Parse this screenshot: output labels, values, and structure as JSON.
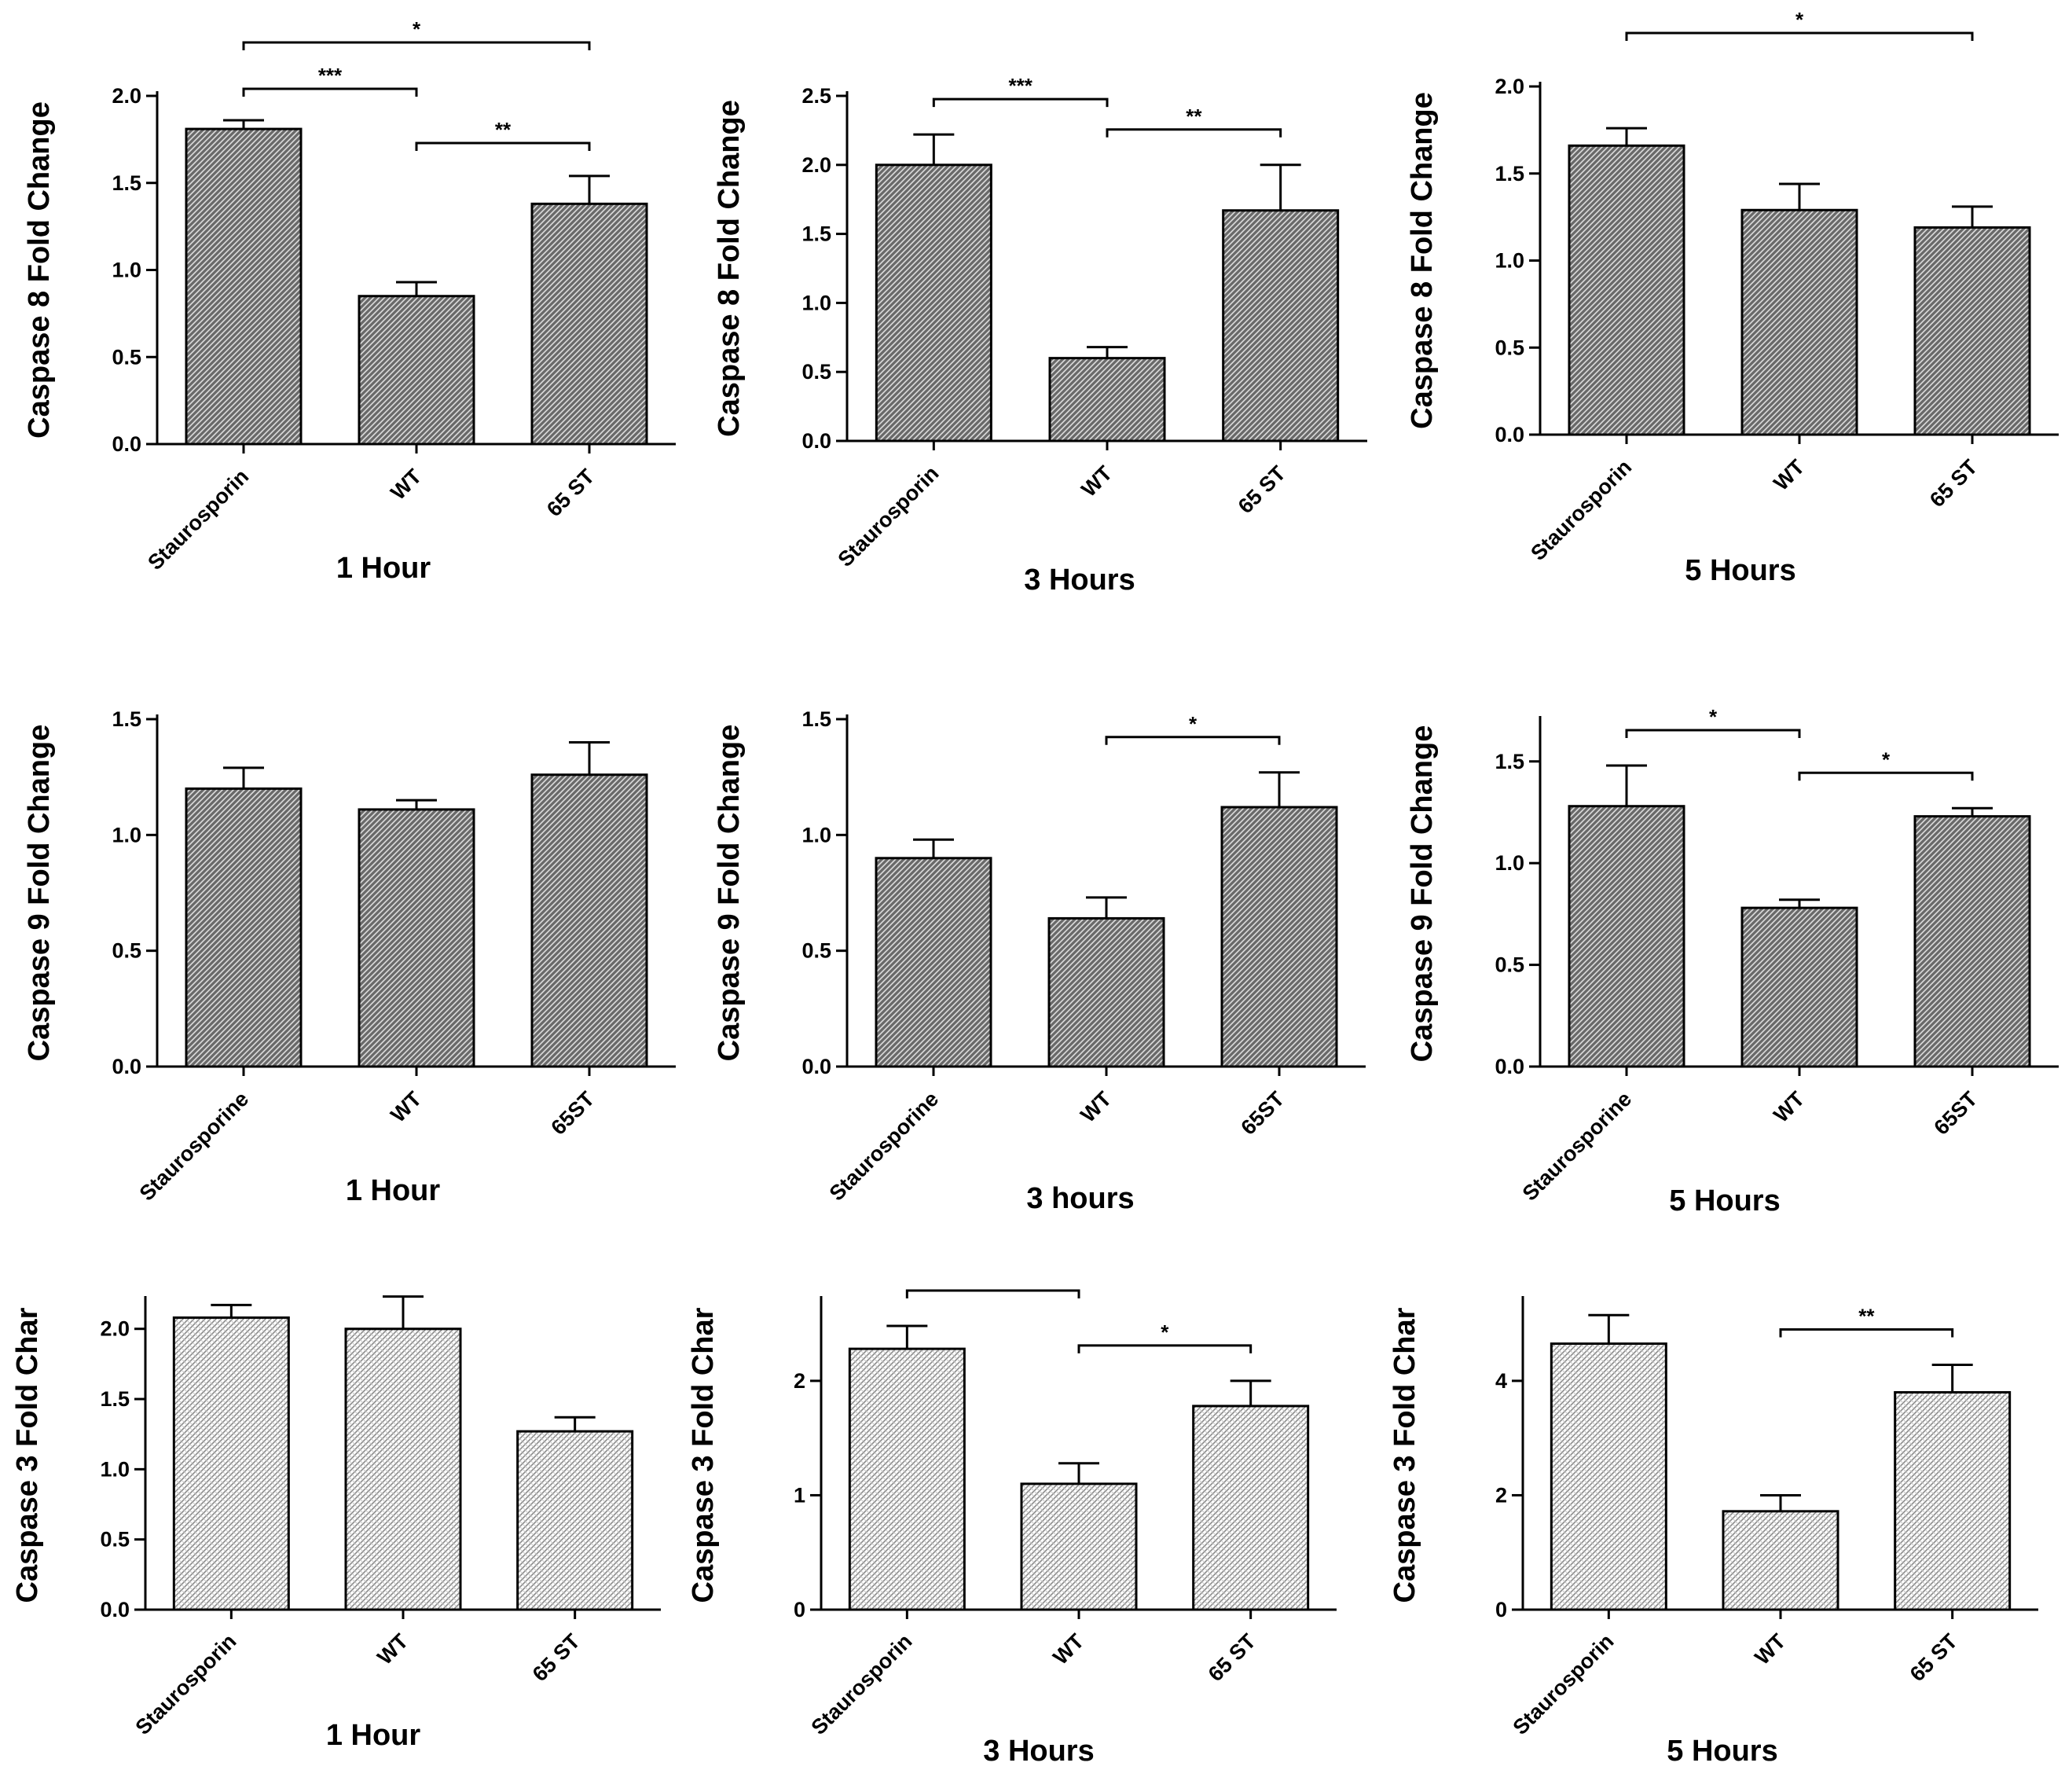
{
  "chart_data": [
    {
      "type": "bar",
      "title": "1 Hour",
      "ylabel": "Caspase 8 Fold Change",
      "xlabel": "",
      "categories": [
        "Staurosporin",
        "WT",
        "65 ST"
      ],
      "values": [
        1.81,
        0.85,
        1.38
      ],
      "errors": [
        0.05,
        0.08,
        0.16
      ],
      "ylim": [
        0,
        2.0
      ],
      "yticks": [
        "0.0",
        "0.5",
        "1.0",
        "1.5",
        "2.0"
      ],
      "significance": [
        {
          "from": 0,
          "to": 2,
          "label": "*"
        },
        {
          "from": 0,
          "to": 1,
          "label": "***"
        },
        {
          "from": 1,
          "to": 2,
          "label": "**"
        }
      ],
      "pattern": "dense"
    },
    {
      "type": "bar",
      "title": "3 Hours",
      "ylabel": "Caspase 8 Fold Change",
      "xlabel": "",
      "categories": [
        "Staurosporin",
        "WT",
        "65 ST"
      ],
      "values": [
        2.0,
        0.6,
        1.67
      ],
      "errors": [
        0.22,
        0.08,
        0.33
      ],
      "ylim": [
        0,
        2.5
      ],
      "yticks": [
        "0.0",
        "0.5",
        "1.0",
        "1.5",
        "2.0",
        "2.5"
      ],
      "significance": [
        {
          "from": 0,
          "to": 1,
          "label": "***"
        },
        {
          "from": 1,
          "to": 2,
          "label": "**"
        }
      ],
      "pattern": "dense"
    },
    {
      "type": "bar",
      "title": "5 Hours",
      "ylabel": "Caspase 8 Fold Change",
      "xlabel": "",
      "categories": [
        "Staurosporin",
        "WT",
        "65 ST"
      ],
      "values": [
        1.66,
        1.29,
        1.19
      ],
      "errors": [
        0.1,
        0.15,
        0.12
      ],
      "ylim": [
        0,
        2.0
      ],
      "yticks": [
        "0.0",
        "0.5",
        "1.0",
        "1.5",
        "2.0"
      ],
      "significance": [
        {
          "from": 0,
          "to": 2,
          "label": "*"
        }
      ],
      "pattern": "dense"
    },
    {
      "type": "bar",
      "title": "1 Hour",
      "ylabel": "Caspase 9 Fold Change",
      "xlabel": "",
      "categories": [
        "Staurosporine",
        "WT",
        "65ST"
      ],
      "values": [
        1.2,
        1.11,
        1.26
      ],
      "errors": [
        0.09,
        0.04,
        0.14
      ],
      "ylim": [
        0,
        1.5
      ],
      "yticks": [
        "0.0",
        "0.5",
        "1.0",
        "1.5"
      ],
      "significance": [],
      "pattern": "dense"
    },
    {
      "type": "bar",
      "title": "3 hours",
      "ylabel": "Caspase 9 Fold Change",
      "xlabel": "",
      "categories": [
        "Staurosporine",
        "WT",
        "65ST"
      ],
      "values": [
        0.9,
        0.64,
        1.12
      ],
      "errors": [
        0.08,
        0.09,
        0.15
      ],
      "ylim": [
        0,
        1.5
      ],
      "yticks": [
        "0.0",
        "0.5",
        "1.0",
        "1.5"
      ],
      "significance": [
        {
          "from": 1,
          "to": 2,
          "label": "*"
        }
      ],
      "pattern": "dense"
    },
    {
      "type": "bar",
      "title": "5 Hours",
      "ylabel": "Caspase 9 Fold Change",
      "xlabel": "",
      "categories": [
        "Staurosporine",
        "WT",
        "65ST"
      ],
      "values": [
        1.28,
        0.78,
        1.23
      ],
      "errors": [
        0.2,
        0.04,
        0.04
      ],
      "ylim": [
        0,
        1.7
      ],
      "yticks": [
        "0.0",
        "0.5",
        "1.0",
        "1.5"
      ],
      "significance": [
        {
          "from": 0,
          "to": 1,
          "label": "*"
        },
        {
          "from": 1,
          "to": 2,
          "label": "*"
        }
      ],
      "pattern": "dense"
    },
    {
      "type": "bar",
      "title": "1 Hour",
      "ylabel": "Caspase 3 Fold Char",
      "xlabel": "",
      "categories": [
        "Staurosporin",
        "WT",
        "65 ST"
      ],
      "values": [
        2.08,
        2.0,
        1.27
      ],
      "errors": [
        0.09,
        0.23,
        0.1
      ],
      "ylim": [
        0,
        2.2
      ],
      "yticks": [
        "0.0",
        "0.5",
        "1.0",
        "1.5",
        "2.0"
      ],
      "significance": [],
      "pattern": "light"
    },
    {
      "type": "bar",
      "title": "3 Hours",
      "ylabel": "Caspase 3 Fold Char",
      "xlabel": "",
      "categories": [
        "Staurosporin",
        "WT",
        "65 ST"
      ],
      "values": [
        2.28,
        1.1,
        1.78
      ],
      "errors": [
        0.2,
        0.18,
        0.22
      ],
      "ylim": [
        0,
        2.7
      ],
      "yticks": [
        "0",
        "1",
        "2"
      ],
      "significance": [
        {
          "from": 0,
          "to": 1,
          "label": ""
        },
        {
          "from": 1,
          "to": 2,
          "label": "*"
        }
      ],
      "pattern": "light"
    },
    {
      "type": "bar",
      "title": "5 Hours",
      "ylabel": "Caspase 3 Fold Char",
      "xlabel": "",
      "categories": [
        "Staurosporin",
        "WT",
        "65 ST"
      ],
      "values": [
        4.65,
        1.72,
        3.8
      ],
      "errors": [
        0.5,
        0.28,
        0.48
      ],
      "ylim": [
        0,
        5.4
      ],
      "yticks": [
        "0",
        "2",
        "4"
      ],
      "significance": [
        {
          "from": 1,
          "to": 2,
          "label": "**"
        }
      ],
      "pattern": "light"
    }
  ]
}
